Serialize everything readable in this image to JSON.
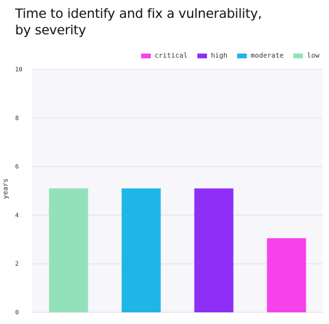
{
  "title_line1": "Time to identify and fix a vulnerability,",
  "title_line2": "by severity",
  "chart_data": {
    "type": "bar",
    "ylabel": "years",
    "ylim": [
      0,
      10
    ],
    "yticks": [
      "0",
      "2",
      "4",
      "6",
      "8",
      "10"
    ],
    "grid": true,
    "legend_placement": "top-right",
    "legend": [
      {
        "name": "critical",
        "color": "#f542ea"
      },
      {
        "name": "high",
        "color": "#8e2ff7"
      },
      {
        "name": "moderate",
        "color": "#1fb5e8"
      },
      {
        "name": "low",
        "color": "#92e1ba"
      }
    ],
    "bars": [
      {
        "series": "low",
        "value": 5.1,
        "color": "#92e1ba"
      },
      {
        "series": "moderate",
        "value": 5.1,
        "color": "#1fb5e8"
      },
      {
        "series": "high",
        "value": 5.1,
        "color": "#8e2ff7"
      },
      {
        "series": "critical",
        "value": 3.05,
        "color": "#f542ea"
      }
    ]
  }
}
